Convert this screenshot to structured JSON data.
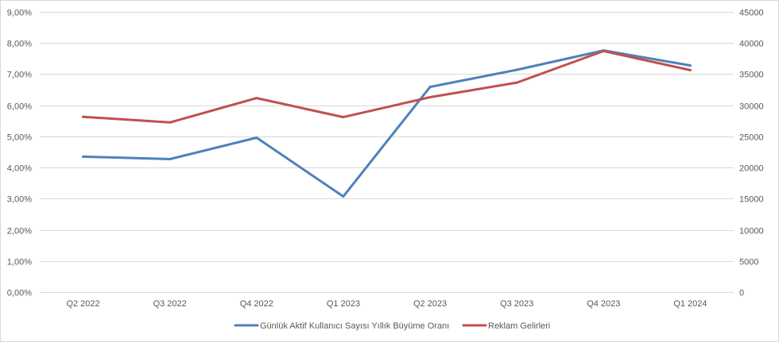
{
  "chart_data": {
    "type": "line",
    "title": "",
    "xlabel": "",
    "ylabel": "",
    "categories": [
      "Q2 2022",
      "Q3 2022",
      "Q4 2022",
      "Q1 2023",
      "Q2 2023",
      "Q3 2023",
      "Q4 2023",
      "Q1 2024"
    ],
    "y_left": {
      "range": [
        0,
        9
      ],
      "ticks": [
        9,
        8,
        7,
        6,
        5,
        4,
        3,
        2,
        1,
        0
      ],
      "tick_labels": [
        "9,00%",
        "8,00%",
        "7,00%",
        "6,00%",
        "5,00%",
        "4,00%",
        "3,00%",
        "2,00%",
        "1,00%",
        "0,00%"
      ]
    },
    "y_right": {
      "range": [
        0,
        45000
      ],
      "ticks": [
        45000,
        40000,
        35000,
        30000,
        25000,
        20000,
        15000,
        10000,
        5000,
        0
      ],
      "tick_labels": [
        "45000",
        "40000",
        "35000",
        "30000",
        "25000",
        "20000",
        "15000",
        "10000",
        "5000",
        "0"
      ]
    },
    "grid": true,
    "legend_position": "bottom-center",
    "series": [
      {
        "name": "Günlük Aktif Kullanıcı Sayısı Yıllık Büyüme Oranı",
        "axis": "left",
        "color": "#4f81bd",
        "values": [
          4.35,
          4.27,
          4.96,
          3.07,
          6.59,
          7.14,
          7.76,
          7.28
        ]
      },
      {
        "name": "Reklam Gelirleri",
        "axis": "right",
        "color": "#c0504d",
        "values": [
          28150,
          27240,
          31150,
          28100,
          31300,
          33640,
          38700,
          35640
        ]
      }
    ]
  }
}
